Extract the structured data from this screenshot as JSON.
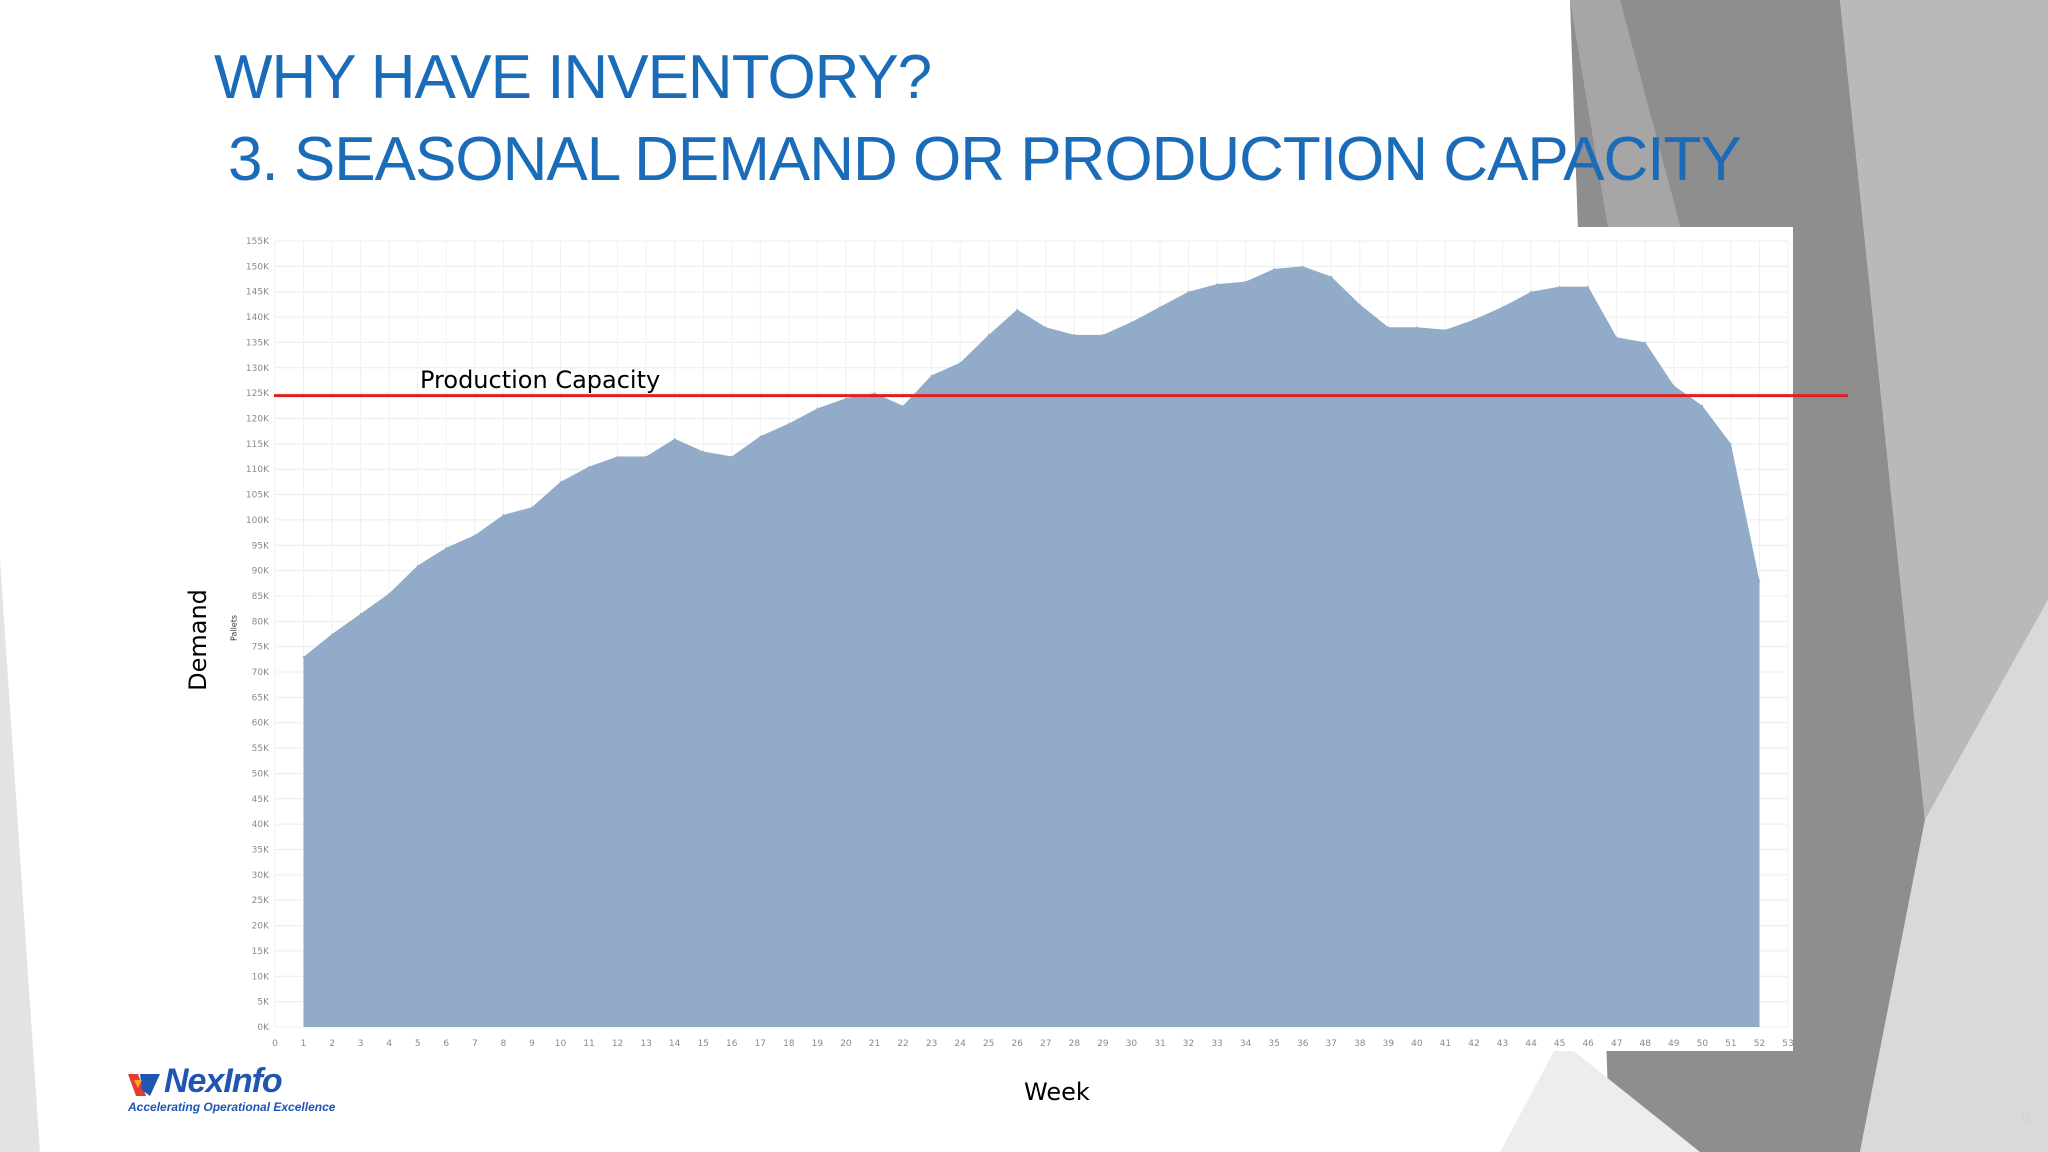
{
  "slide": {
    "title_line1": "WHY HAVE INVENTORY?",
    "title_line2": "3. SEASONAL DEMAND OR PRODUCTION CAPACITY",
    "title_color": "#1a6bb8",
    "slide_number": "20"
  },
  "logo": {
    "name": "NexInfo",
    "tagline": "Accelerating Operational Excellence",
    "brand_color": "#1f55b3",
    "accent_color": "#e53935"
  },
  "chart_data": {
    "type": "area",
    "title": "",
    "xlabel": "Week",
    "ylabel": "Demand",
    "ylabel_inner": "Pallets",
    "xlim": [
      0,
      53
    ],
    "ylim": [
      0,
      155000
    ],
    "x_ticks": [
      "0",
      "1",
      "2",
      "3",
      "4",
      "5",
      "6",
      "7",
      "8",
      "9",
      "10",
      "11",
      "12",
      "13",
      "14",
      "15",
      "16",
      "17",
      "18",
      "19",
      "20",
      "21",
      "22",
      "23",
      "24",
      "25",
      "26",
      "27",
      "28",
      "29",
      "30",
      "31",
      "32",
      "33",
      "34",
      "35",
      "36",
      "37",
      "38",
      "39",
      "40",
      "41",
      "42",
      "43",
      "44",
      "45",
      "46",
      "47",
      "48",
      "49",
      "50",
      "51",
      "52",
      "53"
    ],
    "y_ticks": [
      "0K",
      "5K",
      "10K",
      "15K",
      "20K",
      "25K",
      "30K",
      "35K",
      "40K",
      "45K",
      "50K",
      "55K",
      "60K",
      "65K",
      "70K",
      "75K",
      "80K",
      "85K",
      "90K",
      "95K",
      "100K",
      "105K",
      "110K",
      "115K",
      "120K",
      "125K",
      "130K",
      "135K",
      "140K",
      "145K",
      "150K",
      "155K"
    ],
    "grid": true,
    "series": [
      {
        "color": "#91abc9",
        "x": [
          1,
          2,
          3,
          4,
          5,
          6,
          7,
          8,
          9,
          10,
          11,
          12,
          13,
          14,
          15,
          16,
          17,
          18,
          19,
          20,
          21,
          22,
          23,
          24,
          25,
          26,
          27,
          28,
          29,
          30,
          31,
          32,
          33,
          34,
          35,
          36,
          37,
          38,
          39,
          40,
          41,
          42,
          43,
          44,
          45,
          46,
          47,
          48,
          49,
          50,
          51,
          52
        ],
        "values": [
          73000,
          77500,
          81500,
          85500,
          91000,
          94500,
          97000,
          101000,
          102500,
          107500,
          110500,
          112500,
          112500,
          116000,
          113500,
          112500,
          116500,
          119000,
          122000,
          124000,
          125000,
          122500,
          128500,
          131000,
          136500,
          141500,
          138000,
          136500,
          136500,
          139000,
          142000,
          145000,
          146500,
          147000,
          149500,
          150000,
          148000,
          142500,
          138000,
          138000,
          137500,
          139500,
          142000,
          145000,
          146000,
          146000,
          136000,
          135000,
          126500,
          122500,
          115000,
          88000
        ]
      }
    ],
    "reference_lines": [
      {
        "label": "Production Capacity",
        "value": 124500,
        "color": "#e02020"
      }
    ]
  }
}
